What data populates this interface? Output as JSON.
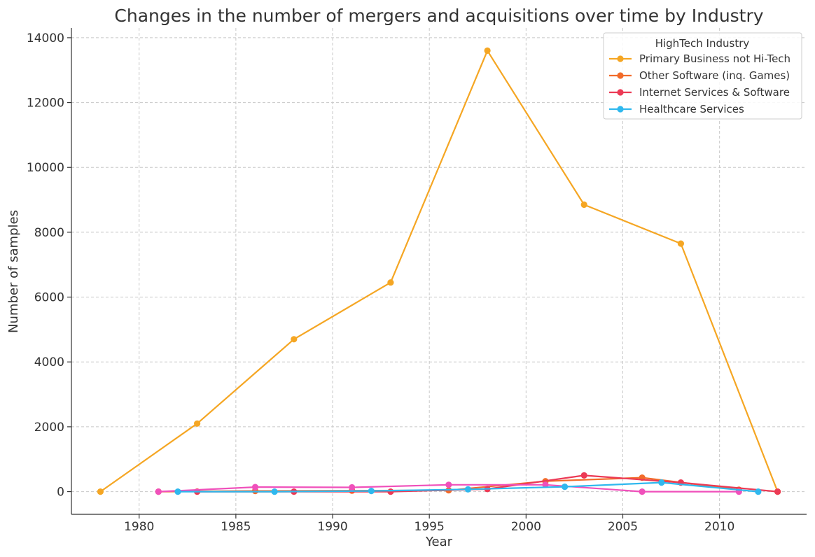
{
  "chart_data": {
    "type": "line",
    "title": "Changes in the number of mergers and acquisitions over time by Industry",
    "xlabel": "Year",
    "ylabel": "Number of samples",
    "xlim": [
      1976.5,
      2014.5
    ],
    "ylim": [
      -700,
      14300
    ],
    "x_ticks": [
      1980,
      1985,
      1990,
      1995,
      2000,
      2005,
      2010
    ],
    "y_ticks": [
      0,
      2000,
      4000,
      6000,
      8000,
      10000,
      12000,
      14000
    ],
    "grid": true,
    "legend": {
      "title": "HighTech Industry",
      "placement": "top-right",
      "entries": [
        {
          "label": "Primary Business not Hi-Tech",
          "color": "#f5a623"
        },
        {
          "label": "Other Software (inq. Games)",
          "color": "#f26b2a"
        },
        {
          "label": "Internet Services & Software",
          "color": "#ec3a55"
        },
        {
          "label": "Healthcare Services",
          "color": "#2fb8ee"
        }
      ]
    },
    "series": [
      {
        "name": "Primary Business not Hi-Tech",
        "color": "#f5a623",
        "points": [
          [
            1978,
            0
          ],
          [
            1983,
            2100
          ],
          [
            1988,
            4700
          ],
          [
            1993,
            6450
          ],
          [
            1998,
            13600
          ],
          [
            2003,
            8850
          ],
          [
            2008,
            7650
          ],
          [
            2013,
            0
          ]
        ]
      },
      {
        "color": "#f26b2a",
        "points": [
          [
            1981,
            0
          ],
          [
            1986,
            20
          ],
          [
            1991,
            30
          ],
          [
            1996,
            40
          ],
          [
            2001,
            320
          ],
          [
            2006,
            430
          ],
          [
            2011,
            60
          ]
        ]
      },
      {
        "color": "#ec3a55",
        "points": [
          [
            1983,
            0
          ],
          [
            1988,
            0
          ],
          [
            1993,
            0
          ],
          [
            1998,
            80
          ],
          [
            2003,
            500
          ],
          [
            2008,
            280
          ],
          [
            2013,
            0
          ]
        ]
      },
      {
        "color": "#f050bb",
        "points": [
          [
            1981,
            0
          ],
          [
            1986,
            140
          ],
          [
            1991,
            130
          ],
          [
            1996,
            210
          ],
          [
            2001,
            210
          ],
          [
            2006,
            0
          ],
          [
            2011,
            0
          ]
        ]
      },
      {
        "color": "#2fb8ee",
        "points": [
          [
            1982,
            0
          ],
          [
            1987,
            0
          ],
          [
            1992,
            20
          ],
          [
            1997,
            70
          ],
          [
            2002,
            150
          ],
          [
            2007,
            280
          ],
          [
            2012,
            0
          ]
        ]
      }
    ]
  }
}
